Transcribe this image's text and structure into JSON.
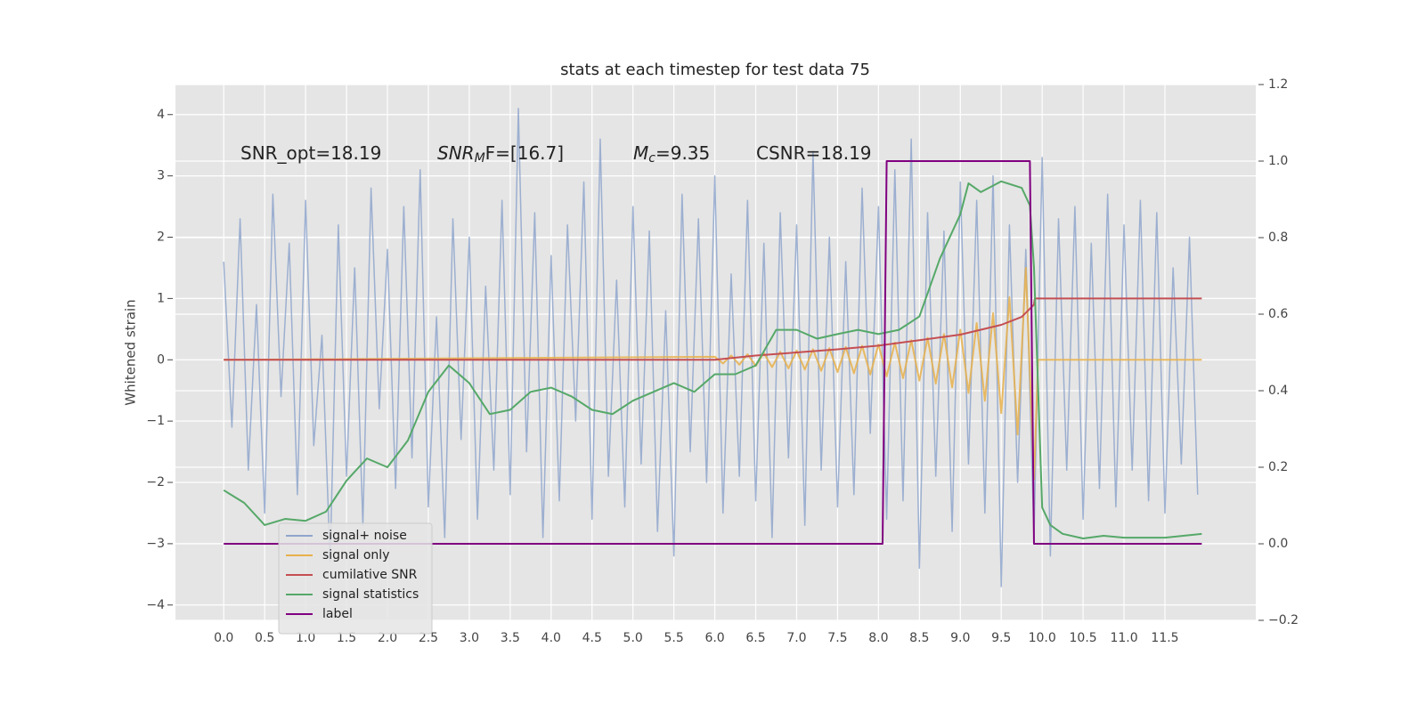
{
  "chart_data": {
    "type": "line",
    "title": "stats at each timestep for test data 75",
    "y_label": "Whitened strain",
    "annotations": [
      [
        "SNR_opt=18.19"
      ],
      [
        "SNR",
        "M",
        "F=[16.7]"
      ],
      [
        "M",
        "c",
        "=9.35"
      ],
      [
        "CSNR=18.19"
      ]
    ],
    "xlim": [
      -0.59,
      12.61
    ],
    "ylim": [
      -4.25,
      4.49
    ],
    "y2lim": [
      -0.2,
      1.2
    ],
    "xticks": [
      {
        "value": 0,
        "label": "0.0"
      },
      {
        "value": 0.5,
        "label": "0.5"
      },
      {
        "value": 1,
        "label": "1.0"
      },
      {
        "value": 1.5,
        "label": "1.5"
      },
      {
        "value": 2,
        "label": "2.0"
      },
      {
        "value": 2.5,
        "label": "2.5"
      },
      {
        "value": 3,
        "label": "3.0"
      },
      {
        "value": 3.5,
        "label": "3.5"
      },
      {
        "value": 4,
        "label": "4.0"
      },
      {
        "value": 4.5,
        "label": "4.5"
      },
      {
        "value": 5,
        "label": "5.0"
      },
      {
        "value": 5.5,
        "label": "5.5"
      },
      {
        "value": 6,
        "label": "6.0"
      },
      {
        "value": 6.5,
        "label": "6.5"
      },
      {
        "value": 7,
        "label": "7.0"
      },
      {
        "value": 7.5,
        "label": "7.5"
      },
      {
        "value": 8,
        "label": "8.0"
      },
      {
        "value": 8.5,
        "label": "8.5"
      },
      {
        "value": 9,
        "label": "9.0"
      },
      {
        "value": 9.5,
        "label": "9.5"
      },
      {
        "value": 10,
        "label": "10.0"
      },
      {
        "value": 10.5,
        "label": "10.5"
      },
      {
        "value": 11,
        "label": "11.0"
      },
      {
        "value": 11.5,
        "label": "11.5"
      }
    ],
    "yticks": [
      {
        "value": -4,
        "label": "−4"
      },
      {
        "value": -3,
        "label": "−3"
      },
      {
        "value": -2,
        "label": "−2"
      },
      {
        "value": -1,
        "label": "−1"
      },
      0,
      1,
      2,
      3,
      4
    ],
    "y2ticks": [
      {
        "value": -0.2,
        "label": "−0.2"
      },
      {
        "value": 0,
        "label": "0.0"
      },
      {
        "value": 0.2,
        "label": "0.2"
      },
      {
        "value": 0.4,
        "label": "0.4"
      },
      {
        "value": 0.6,
        "label": "0.6"
      },
      {
        "value": 0.8,
        "label": "0.8"
      },
      {
        "value": 1,
        "label": "1.0"
      },
      {
        "value": 1.2,
        "label": "1.2"
      }
    ],
    "grid": true,
    "legend": "lower left",
    "series": [
      {
        "name": "signal+ noise",
        "color": "#8fa6cc",
        "x": [
          0,
          0.1,
          0.2,
          0.3,
          0.4,
          0.5,
          0.6,
          0.7,
          0.8,
          0.9,
          1,
          1.1,
          1.2,
          1.3,
          1.4,
          1.5,
          1.6,
          1.7,
          1.8,
          1.9,
          2,
          2.1,
          2.2,
          2.3,
          2.4,
          2.5,
          2.6,
          2.7,
          2.8,
          2.9,
          3,
          3.1,
          3.2,
          3.3,
          3.4,
          3.5,
          3.6,
          3.7,
          3.8,
          3.9,
          4,
          4.1,
          4.2,
          4.3,
          4.4,
          4.5,
          4.6,
          4.7,
          4.8,
          4.9,
          5,
          5.1,
          5.2,
          5.3,
          5.4,
          5.5,
          5.6,
          5.7,
          5.8,
          5.9,
          6,
          6.1,
          6.2,
          6.3,
          6.4,
          6.5,
          6.6,
          6.7,
          6.8,
          6.9,
          7,
          7.1,
          7.2,
          7.3,
          7.4,
          7.5,
          7.6,
          7.7,
          7.8,
          7.9,
          8,
          8.1,
          8.2,
          8.3,
          8.4,
          8.5,
          8.6,
          8.7,
          8.8,
          8.9,
          9,
          9.1,
          9.2,
          9.3,
          9.4,
          9.5,
          9.6,
          9.7,
          9.8,
          9.9,
          10,
          10.1,
          10.2,
          10.3,
          10.4,
          10.5,
          10.6,
          10.7,
          10.8,
          10.9,
          11,
          11.1,
          11.2,
          11.3,
          11.4,
          11.5,
          11.6,
          11.7,
          11.8,
          11.9
        ],
        "values": [
          1.6,
          -1.1,
          2.3,
          -1.8,
          0.9,
          -2.5,
          2.7,
          -0.6,
          1.9,
          -2.2,
          2.6,
          -1.4,
          0.4,
          -3.3,
          2.2,
          -1.9,
          1.5,
          -2.7,
          2.8,
          -0.8,
          1.8,
          -2.1,
          2.5,
          -1.6,
          3.1,
          -2.4,
          0.7,
          -2.9,
          2.3,
          -1.3,
          2.0,
          -2.6,
          1.2,
          -1.8,
          2.6,
          -2.2,
          4.1,
          -1.5,
          2.4,
          -2.9,
          1.7,
          -2.3,
          2.2,
          -1.0,
          2.9,
          -2.6,
          3.6,
          -1.9,
          1.3,
          -2.4,
          2.5,
          -1.7,
          2.1,
          -2.8,
          0.8,
          -3.2,
          2.7,
          -1.5,
          2.3,
          -2.0,
          3.0,
          -2.5,
          1.4,
          -1.9,
          2.6,
          -2.3,
          1.9,
          -2.9,
          2.4,
          -1.6,
          2.2,
          -2.7,
          3.4,
          -1.8,
          2.0,
          -2.4,
          1.6,
          -2.2,
          2.8,
          -1.2,
          2.5,
          -2.6,
          3.1,
          -2.3,
          3.6,
          -3.4,
          2.4,
          -1.9,
          2.1,
          -2.8,
          2.9,
          -1.7,
          2.6,
          -2.5,
          3.0,
          -3.7,
          2.2,
          -2.0,
          1.8,
          -2.9,
          3.3,
          -3.2,
          2.3,
          -1.8,
          2.5,
          -2.6,
          1.9,
          -2.1,
          2.7,
          -2.4,
          2.2,
          -1.8,
          2.6,
          -2.3,
          2.4,
          -2.5,
          1.5,
          -1.7,
          2.0,
          -2.2
        ]
      },
      {
        "name": "signal only",
        "color": "#e8b04a",
        "x": [
          0,
          6,
          6.1,
          6.2,
          6.3,
          6.4,
          6.5,
          6.6,
          6.7,
          6.8,
          6.9,
          7,
          7.1,
          7.2,
          7.3,
          7.4,
          7.5,
          7.6,
          7.7,
          7.8,
          7.9,
          8,
          8.1,
          8.2,
          8.3,
          8.4,
          8.5,
          8.6,
          8.7,
          8.8,
          8.9,
          9,
          9.1,
          9.2,
          9.3,
          9.4,
          9.5,
          9.6,
          9.7,
          9.8,
          9.9,
          9.95,
          11.95
        ],
        "values": [
          0,
          0.05,
          -0.06,
          0.07,
          -0.08,
          0.09,
          -0.1,
          0.11,
          -0.12,
          0.13,
          -0.14,
          0.15,
          -0.16,
          0.17,
          -0.18,
          0.19,
          -0.2,
          0.21,
          -0.22,
          0.23,
          -0.24,
          0.25,
          -0.27,
          0.28,
          -0.3,
          0.32,
          -0.34,
          0.36,
          -0.39,
          0.42,
          -0.45,
          0.49,
          -0.54,
          0.6,
          -0.67,
          0.76,
          -0.87,
          1.02,
          -1.22,
          1.5,
          -1.95,
          0,
          0
        ]
      },
      {
        "name": "cumilative SNR",
        "color": "#c44e52",
        "x": [
          0,
          6,
          6.5,
          7,
          7.5,
          8,
          8.5,
          9,
          9.5,
          9.75,
          9.9,
          9.91,
          11.95
        ],
        "values": [
          0,
          0,
          0.07,
          0.12,
          0.17,
          0.23,
          0.32,
          0.41,
          0.57,
          0.7,
          0.9,
          1.0,
          1.0
        ]
      },
      {
        "name": "signal statistics",
        "color": "#55a868",
        "axis": "y2",
        "x": [
          0,
          0.25,
          0.5,
          0.75,
          1,
          1.25,
          1.5,
          1.75,
          2,
          2.25,
          2.5,
          2.75,
          3,
          3.25,
          3.5,
          3.75,
          4,
          4.25,
          4.5,
          4.75,
          5,
          5.25,
          5.5,
          5.75,
          6,
          6.25,
          6.5,
          6.75,
          7,
          7.25,
          7.5,
          7.75,
          8,
          8.25,
          8.5,
          8.75,
          9,
          9.1,
          9.25,
          9.5,
          9.75,
          9.85,
          9.9,
          10,
          10.1,
          10.25,
          10.5,
          10.75,
          11,
          11.5,
          11.95
        ],
        "values": [
          0.14,
          0.107,
          0.049,
          0.065,
          0.06,
          0.084,
          0.165,
          0.223,
          0.2,
          0.27,
          0.397,
          0.466,
          0.42,
          0.339,
          0.35,
          0.397,
          0.408,
          0.385,
          0.35,
          0.339,
          0.374,
          0.397,
          0.42,
          0.397,
          0.443,
          0.443,
          0.466,
          0.559,
          0.559,
          0.536,
          0.548,
          0.559,
          0.548,
          0.559,
          0.594,
          0.745,
          0.861,
          0.942,
          0.919,
          0.947,
          0.93,
          0.884,
          0.722,
          0.095,
          0.049,
          0.026,
          0.014,
          0.021,
          0.016,
          0.016,
          0.026
        ]
      },
      {
        "name": "label",
        "color": "#800080",
        "axis": "y2",
        "x": [
          0,
          8.05,
          8.1,
          9.85,
          9.9,
          11.95
        ],
        "values": [
          0,
          0,
          1,
          1,
          0,
          0
        ]
      }
    ]
  }
}
